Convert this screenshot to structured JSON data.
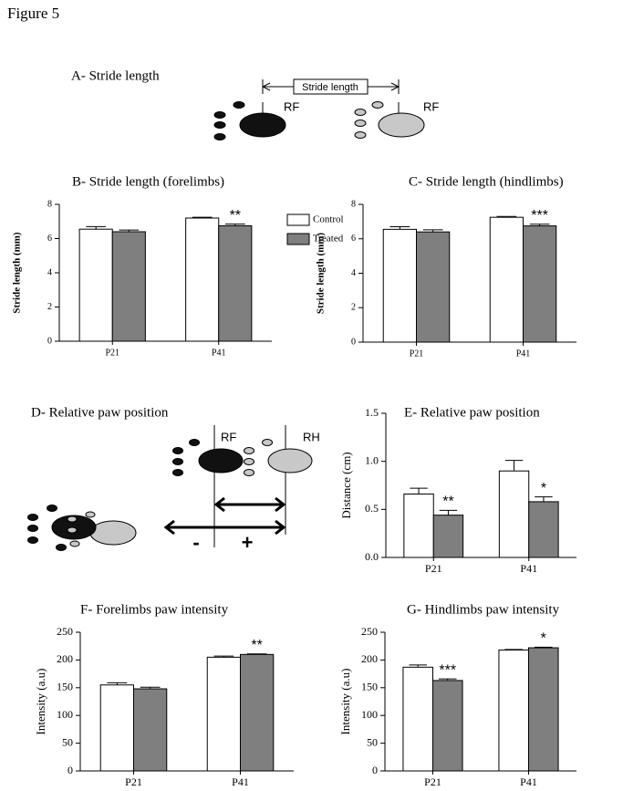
{
  "figure_title": "Figure 5",
  "diagram_a": {
    "title": "A- Stride length",
    "measure_label": "Stride length",
    "paw_left": "RF",
    "paw_right": "RF"
  },
  "diagram_d": {
    "title": "D- Relative paw position",
    "paw_front": "RF",
    "paw_hind": "RH",
    "minus": "-",
    "plus": "+"
  },
  "chart_data": [
    {
      "type": "bar",
      "title": "B- Stride length (forelimbs)",
      "ylabel": "Stride length (mm)",
      "categories": [
        "P21",
        "P41"
      ],
      "ylim": [
        0,
        8
      ],
      "yticks": [
        0,
        2,
        4,
        6,
        8
      ],
      "legend": "right",
      "series": [
        {
          "name": "Control",
          "color": "#ffffff",
          "values": [
            6.55,
            7.2
          ],
          "errors": [
            0.15,
            0.05
          ]
        },
        {
          "name": "Treated",
          "color": "#7f7f7f",
          "values": [
            6.4,
            6.75
          ],
          "errors": [
            0.1,
            0.1
          ],
          "significance": [
            null,
            "**"
          ]
        }
      ]
    },
    {
      "type": "bar",
      "title": "C- Stride length (hindlimbs)",
      "ylabel": "Stride length (mm)",
      "categories": [
        "P21",
        "P41"
      ],
      "ylim": [
        0,
        8
      ],
      "yticks": [
        0,
        2,
        4,
        6,
        8
      ],
      "series": [
        {
          "color": "#ffffff",
          "values": [
            6.55,
            7.25
          ],
          "errors": [
            0.15,
            0.05
          ]
        },
        {
          "color": "#7f7f7f",
          "values": [
            6.4,
            6.75
          ],
          "errors": [
            0.12,
            0.1
          ],
          "significance": [
            null,
            "***"
          ]
        }
      ]
    },
    {
      "type": "bar",
      "title": "E- Relative paw position",
      "ylabel": "Distance (cm)",
      "categories": [
        "P21",
        "P41"
      ],
      "ylim": [
        0,
        1.5
      ],
      "yticks": [
        {
          "value": 0,
          "label": "0.0"
        },
        {
          "value": 0.5,
          "label": "0.5"
        },
        {
          "value": 1,
          "label": "1.0"
        },
        {
          "value": 1.5,
          "label": "1.5"
        }
      ],
      "series": [
        {
          "color": "#ffffff",
          "values": [
            0.66,
            0.9
          ],
          "errors": [
            0.06,
            0.11
          ]
        },
        {
          "color": "#7f7f7f",
          "values": [
            0.44,
            0.58
          ],
          "errors": [
            0.05,
            0.05
          ],
          "significance": [
            "**",
            "*"
          ]
        }
      ]
    },
    {
      "type": "bar",
      "title": "F- Forelimbs paw intensity",
      "ylabel": "Intensity (a.u)",
      "categories": [
        "P21",
        "P41"
      ],
      "ylim": [
        0,
        250
      ],
      "yticks": [
        0,
        50,
        100,
        150,
        200,
        250
      ],
      "series": [
        {
          "color": "#ffffff",
          "values": [
            155,
            205
          ],
          "errors": [
            4,
            2
          ]
        },
        {
          "color": "#7f7f7f",
          "values": [
            148,
            210
          ],
          "errors": [
            3,
            1
          ],
          "significance": [
            null,
            "**"
          ]
        }
      ]
    },
    {
      "type": "bar",
      "title": "G- Hindlimbs paw intensity",
      "ylabel": "Intensity (a.u)",
      "categories": [
        "P21",
        "P41"
      ],
      "ylim": [
        0,
        250
      ],
      "yticks": [
        0,
        50,
        100,
        150,
        200,
        250
      ],
      "series": [
        {
          "color": "#ffffff",
          "values": [
            187,
            218
          ],
          "errors": [
            4,
            1
          ]
        },
        {
          "color": "#7f7f7f",
          "values": [
            163,
            222
          ],
          "errors": [
            3,
            1
          ],
          "significance": [
            "***",
            "*"
          ]
        }
      ]
    }
  ]
}
